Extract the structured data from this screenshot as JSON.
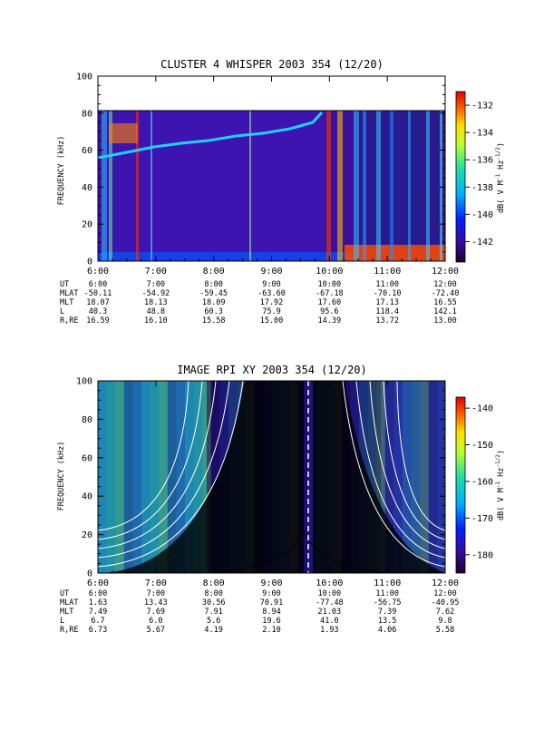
{
  "chart_data": [
    {
      "type": "heatmap",
      "title": "CLUSTER 4 WHISPER 2003 354 (12/20)",
      "ylabel": "FREQUENCY (kHz)",
      "ylim": [
        0,
        100
      ],
      "y_ticks": [
        "0",
        "20",
        "40",
        "60",
        "80",
        "100"
      ],
      "x_ticks": [
        "6:00",
        "7:00",
        "8:00",
        "9:00",
        "10:00",
        "11:00",
        "12:00"
      ],
      "colorbar": {
        "label": "dB( V M⁻¹ Hz⁻¹ᐟ²)",
        "label_main": "dB( V M",
        "label_exp1": "-1",
        "label_mid": " Hz",
        "label_exp2": "-1/2",
        "label_end": ")",
        "range": [
          -143.5,
          -131
        ],
        "ticks": [
          "-132",
          "-134",
          "-136",
          "-138",
          "-140",
          "-142"
        ]
      },
      "ephemeris": {
        "UT": [
          "6:00",
          "7:00",
          "8:00",
          "9:00",
          "10:00",
          "11:00",
          "12:00"
        ],
        "MLAT": [
          "-50.11",
          "-54.92",
          "-59.45",
          "-63.60",
          "-67.18",
          "-70.10",
          "-72.40"
        ],
        "MLT": [
          "18.07",
          "18.13",
          "18.09",
          "17.92",
          "17.60",
          "17.13",
          "16.55"
        ],
        "L": [
          "40.3",
          "48.8",
          "60.3",
          "75.9",
          "95.6",
          "118.4",
          "142.1"
        ],
        "R,RE": [
          "16.59",
          "16.10",
          "15.58",
          "15.00",
          "14.39",
          "13.72",
          "13.00"
        ]
      }
    },
    {
      "type": "heatmap",
      "title": "IMAGE RPI XY 2003 354 (12/20)",
      "ylabel": "FREQUENCY (kHz)",
      "ylim": [
        0,
        100
      ],
      "y_ticks": [
        "0",
        "20",
        "40",
        "60",
        "80",
        "100"
      ],
      "x_ticks": [
        "6:00",
        "7:00",
        "8:00",
        "9:00",
        "10:00",
        "11:00",
        "12:00"
      ],
      "colorbar": {
        "label_main": "dB( V M",
        "label_exp1": "-1",
        "label_mid": " Hz",
        "label_exp2": "-1/2",
        "label_end": ")",
        "range": [
          -185,
          -137
        ],
        "ticks": [
          "-140",
          "-150",
          "-160",
          "-170",
          "-180"
        ]
      },
      "ephemeris": {
        "UT": [
          "6:00",
          "7:00",
          "8:00",
          "9:00",
          "10:00",
          "11:00",
          "12:00"
        ],
        "MLAT": [
          "1.63",
          "13.43",
          "30.56",
          "70.91",
          "-77.48",
          "-56.75",
          "-40.95"
        ],
        "MLT": [
          "7.49",
          "7.69",
          "7.91",
          "8.94",
          "21.03",
          "7.39",
          "7.62"
        ],
        "L": [
          "6.7",
          "6.0",
          "5.6",
          "19.6",
          "41.0",
          "13.5",
          "9.8"
        ],
        "R,RE": [
          "6.73",
          "5.67",
          "4.19",
          "2.10",
          "1.93",
          "4.06",
          "5.58"
        ]
      }
    }
  ]
}
